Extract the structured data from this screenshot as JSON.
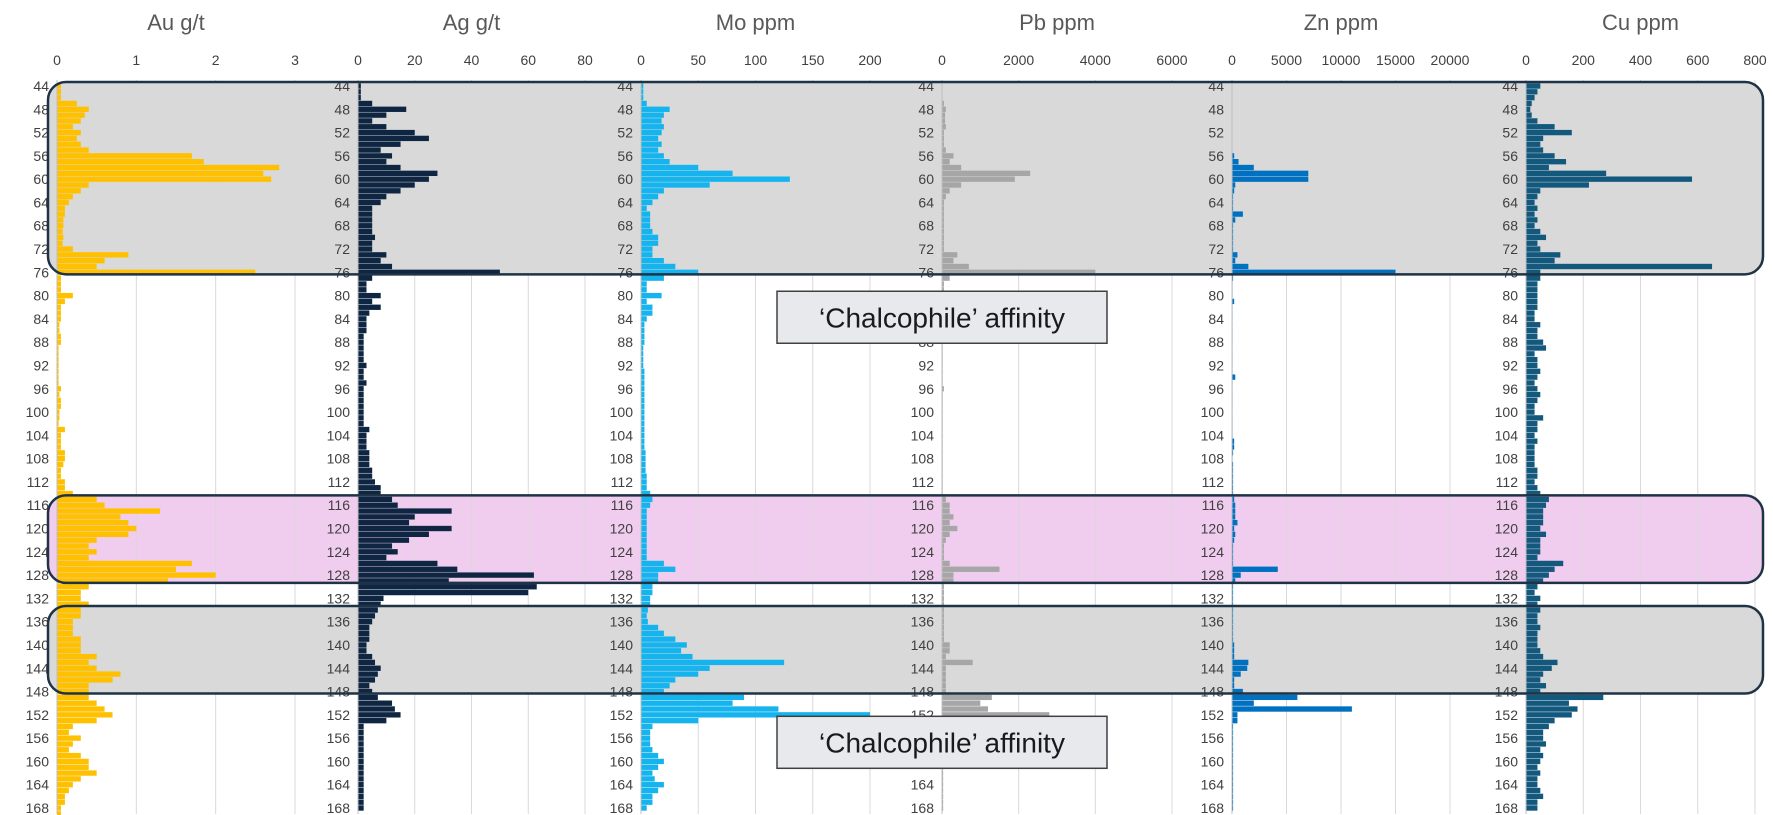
{
  "chart_data": {
    "type": "bar",
    "orientation": "horizontal",
    "grid": true,
    "depth_ticks": [
      44,
      48,
      52,
      56,
      60,
      64,
      68,
      72,
      76,
      80,
      84,
      88,
      92,
      96,
      100,
      104,
      108,
      112,
      116,
      120,
      124,
      128,
      132,
      136,
      140,
      144,
      148,
      152,
      156,
      160,
      164,
      168
    ],
    "depth_range": [
      44,
      168
    ],
    "interval_m": 1,
    "zones": [
      {
        "from": 44,
        "to": 76,
        "color": "#d9d9d9"
      },
      {
        "from": 115,
        "to": 129,
        "color": "#f0cdee"
      },
      {
        "from": 134,
        "to": 148,
        "color": "#d9d9d9"
      }
    ],
    "annotations": [
      {
        "text": "‘Chalcophile’ affinity",
        "depth": 82
      },
      {
        "text": "‘Chalcophile’ affinity",
        "depth": 155
      }
    ],
    "panels": [
      {
        "title": "Au g/t",
        "color": "#ffc000",
        "xlim": [
          0,
          3
        ],
        "ticks": [
          0,
          1,
          2,
          3
        ],
        "values": [
          0.05,
          0.05,
          0.05,
          0.25,
          0.4,
          0.35,
          0.3,
          0.2,
          0.3,
          0.25,
          0.3,
          0.4,
          1.7,
          1.85,
          2.8,
          2.6,
          2.7,
          0.4,
          0.3,
          0.2,
          0.15,
          0.1,
          0.1,
          0.08,
          0.08,
          0.07,
          0.08,
          0.07,
          0.2,
          0.9,
          0.6,
          0.5,
          2.5,
          0.05,
          0.05,
          0.05,
          0.2,
          0.1,
          0.05,
          0.05,
          0.05,
          0.03,
          0.03,
          0.05,
          0.05,
          0.02,
          0.02,
          0.02,
          0.02,
          0.02,
          0.02,
          0.02,
          0.05,
          0.03,
          0.05,
          0.05,
          0.03,
          0.03,
          0.02,
          0.1,
          0.05,
          0.05,
          0.05,
          0.1,
          0.1,
          0.08,
          0.05,
          0.05,
          0.1,
          0.1,
          0.2,
          0.5,
          0.6,
          1.3,
          0.8,
          0.9,
          1.0,
          0.9,
          0.5,
          0.4,
          0.5,
          0.4,
          1.7,
          1.5,
          2.0,
          1.4,
          0.4,
          0.3,
          0.3,
          0.4,
          0.3,
          0.3,
          0.2,
          0.2,
          0.2,
          0.3,
          0.3,
          0.3,
          0.5,
          0.4,
          0.5,
          0.8,
          0.7,
          0.4,
          0.4,
          0.4,
          0.5,
          0.6,
          0.7,
          0.5,
          0.2,
          0.15,
          0.3,
          0.2,
          0.15,
          0.3,
          0.4,
          0.4,
          0.5,
          0.3,
          0.2,
          0.15,
          0.1,
          0.1,
          0.05,
          0.05
        ]
      },
      {
        "title": "Ag g/t",
        "color": "#0f2643",
        "xlim": [
          0,
          80
        ],
        "ticks": [
          0,
          20,
          40,
          60,
          80
        ],
        "values": [
          1,
          1,
          1,
          5,
          17,
          10,
          5,
          10,
          20,
          25,
          15,
          8,
          12,
          10,
          15,
          28,
          25,
          20,
          15,
          10,
          8,
          5,
          5,
          5,
          5,
          5,
          6,
          5,
          5,
          10,
          8,
          12,
          50,
          5,
          3,
          3,
          8,
          5,
          8,
          4,
          3,
          3,
          3,
          2,
          2,
          2,
          2,
          2,
          3,
          2,
          2,
          3,
          2,
          2,
          2,
          2,
          2,
          2,
          2,
          4,
          3,
          3,
          3,
          4,
          4,
          4,
          5,
          5,
          6,
          8,
          8,
          12,
          14,
          33,
          20,
          18,
          33,
          25,
          18,
          12,
          14,
          10,
          28,
          35,
          62,
          32,
          63,
          60,
          9,
          8,
          7,
          6,
          5,
          4,
          4,
          4,
          3,
          3,
          5,
          6,
          8,
          7,
          6,
          4,
          5,
          7,
          12,
          13,
          15,
          10,
          2,
          2,
          2,
          2,
          2,
          2,
          2,
          2,
          2,
          2,
          2,
          2,
          2,
          2,
          2
        ]
      },
      {
        "title": "Mo ppm",
        "color": "#15b4ee",
        "xlim": [
          0,
          200
        ],
        "ticks": [
          0,
          50,
          100,
          150,
          200
        ],
        "values": [
          2,
          2,
          2,
          5,
          25,
          20,
          18,
          20,
          18,
          15,
          18,
          15,
          20,
          25,
          50,
          80,
          130,
          60,
          20,
          15,
          10,
          5,
          8,
          8,
          8,
          10,
          15,
          15,
          10,
          10,
          20,
          30,
          50,
          20,
          5,
          5,
          18,
          5,
          10,
          10,
          5,
          3,
          3,
          3,
          3,
          2,
          2,
          2,
          2,
          3,
          3,
          3,
          3,
          3,
          3,
          3,
          3,
          3,
          3,
          3,
          3,
          3,
          3,
          4,
          4,
          4,
          4,
          5,
          5,
          5,
          8,
          10,
          8,
          5,
          5,
          5,
          5,
          5,
          5,
          5,
          5,
          5,
          20,
          30,
          15,
          15,
          10,
          10,
          8,
          8,
          6,
          5,
          6,
          15,
          20,
          30,
          40,
          35,
          45,
          125,
          60,
          50,
          30,
          25,
          20,
          90,
          80,
          120,
          200,
          50,
          10,
          8,
          8,
          8,
          10,
          15,
          20,
          15,
          10,
          12,
          20,
          15,
          10,
          10,
          5
        ]
      },
      {
        "title": "Pb ppm",
        "color": "#a6a6a6",
        "xlim": [
          0,
          6000
        ],
        "ticks": [
          0,
          2000,
          4000,
          6000
        ],
        "values": [
          0,
          0,
          0,
          50,
          100,
          80,
          80,
          100,
          50,
          50,
          50,
          100,
          300,
          200,
          500,
          2300,
          1900,
          500,
          200,
          100,
          50,
          50,
          50,
          50,
          50,
          50,
          50,
          50,
          50,
          400,
          300,
          700,
          4000,
          200,
          50,
          50,
          50,
          50,
          50,
          50,
          30,
          30,
          20,
          20,
          20,
          20,
          20,
          20,
          20,
          20,
          20,
          20,
          50,
          20,
          20,
          20,
          20,
          20,
          20,
          20,
          20,
          20,
          20,
          20,
          20,
          20,
          20,
          20,
          20,
          20,
          20,
          100,
          200,
          200,
          300,
          200,
          400,
          200,
          100,
          50,
          50,
          50,
          200,
          1500,
          300,
          300,
          50,
          50,
          50,
          50,
          50,
          50,
          50,
          50,
          50,
          50,
          200,
          200,
          100,
          800,
          100,
          100,
          100,
          100,
          100,
          1300,
          1000,
          1200,
          2800,
          300,
          50,
          50,
          30,
          30,
          30,
          30,
          30,
          30,
          30,
          30,
          30,
          30,
          30,
          30,
          30
        ]
      },
      {
        "title": "Zn ppm",
        "color": "#0070c0",
        "xlim": [
          0,
          20000
        ],
        "ticks": [
          0,
          5000,
          10000,
          15000,
          20000
        ],
        "values": [
          0,
          0,
          0,
          0,
          0,
          0,
          0,
          0,
          0,
          0,
          0,
          0,
          200,
          600,
          2000,
          7000,
          7000,
          300,
          200,
          100,
          100,
          100,
          1000,
          300,
          100,
          100,
          100,
          100,
          100,
          500,
          300,
          1500,
          15000,
          100,
          50,
          50,
          50,
          200,
          50,
          50,
          50,
          50,
          50,
          50,
          50,
          50,
          50,
          50,
          50,
          50,
          300,
          50,
          50,
          50,
          50,
          50,
          50,
          50,
          50,
          50,
          50,
          200,
          200,
          100,
          50,
          100,
          100,
          100,
          100,
          100,
          100,
          200,
          300,
          300,
          300,
          500,
          200,
          300,
          200,
          100,
          100,
          100,
          100,
          4200,
          800,
          300,
          100,
          100,
          100,
          100,
          100,
          100,
          100,
          100,
          100,
          100,
          200,
          200,
          200,
          1500,
          1400,
          800,
          200,
          200,
          1000,
          6000,
          2000,
          11000,
          500,
          500,
          100,
          100,
          100,
          100,
          100,
          100,
          100,
          100,
          100,
          100,
          100,
          100,
          100,
          100,
          100
        ]
      },
      {
        "title": "Cu ppm",
        "color": "#13587d",
        "xlim": [
          0,
          800
        ],
        "ticks": [
          0,
          200,
          400,
          600,
          800
        ],
        "values": [
          50,
          40,
          30,
          20,
          15,
          20,
          40,
          100,
          160,
          60,
          50,
          60,
          100,
          140,
          80,
          280,
          580,
          220,
          50,
          40,
          30,
          40,
          30,
          40,
          30,
          50,
          70,
          40,
          50,
          120,
          100,
          650,
          50,
          50,
          40,
          40,
          40,
          40,
          40,
          30,
          30,
          50,
          40,
          40,
          60,
          70,
          30,
          40,
          40,
          50,
          40,
          30,
          40,
          50,
          40,
          30,
          30,
          60,
          40,
          40,
          30,
          40,
          30,
          30,
          30,
          30,
          40,
          40,
          30,
          40,
          50,
          80,
          70,
          60,
          60,
          60,
          50,
          70,
          50,
          50,
          50,
          40,
          130,
          100,
          80,
          60,
          40,
          30,
          50,
          40,
          50,
          40,
          40,
          50,
          40,
          40,
          40,
          50,
          60,
          110,
          90,
          60,
          50,
          70,
          50,
          270,
          150,
          180,
          160,
          100,
          80,
          60,
          60,
          70,
          50,
          60,
          50,
          40,
          50,
          40,
          40,
          50,
          60,
          40,
          40
        ]
      }
    ]
  }
}
